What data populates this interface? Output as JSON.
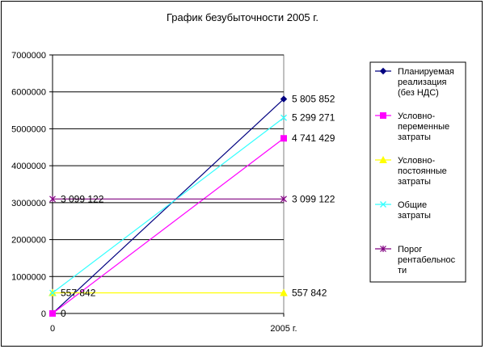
{
  "chart_data": {
    "type": "line",
    "title": "График безубыточности 2005 г.",
    "categories": [
      "0",
      "2005 г."
    ],
    "ylim": [
      0,
      7000000
    ],
    "yticks": [
      "0",
      "1000000",
      "2000000",
      "3000000",
      "4000000",
      "5000000",
      "6000000",
      "7000000"
    ],
    "grid": true,
    "legend_position": "right",
    "series": [
      {
        "name": "Планируемая реализация (без НДС)",
        "values": [
          0,
          5805852
        ],
        "labels": [
          "0",
          "5 805 852"
        ],
        "color": "#000080",
        "marker": "diamond"
      },
      {
        "name": "Условно-переменные затраты",
        "values": [
          0,
          4741429
        ],
        "labels": [
          "",
          "4 741 429"
        ],
        "color": "#ff00ff",
        "marker": "square"
      },
      {
        "name": "Условно-постоянные затраты",
        "values": [
          557842,
          557842
        ],
        "labels": [
          "557 842",
          "557 842"
        ],
        "color": "#ffff00",
        "marker": "triangle"
      },
      {
        "name": "Общие затраты",
        "values": [
          557842,
          5299271
        ],
        "labels": [
          "",
          "5 299 271"
        ],
        "color": "#33ffff",
        "marker": "x"
      },
      {
        "name": "Порог рентабельности",
        "values": [
          3099122,
          3099122
        ],
        "labels": [
          "3 099 122",
          "3 099 122"
        ],
        "color": "#800080",
        "marker": "star"
      }
    ]
  }
}
